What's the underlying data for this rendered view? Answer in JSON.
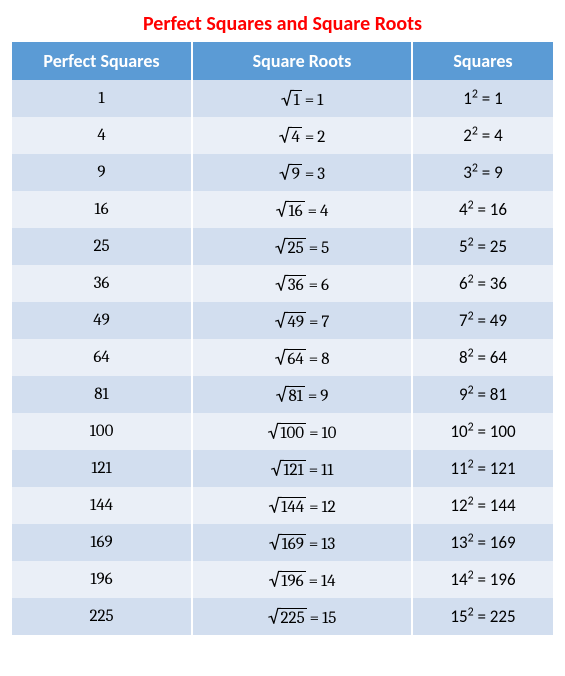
{
  "title": "Perfect Squares and Square Roots",
  "title_color": "#ff0000",
  "title_fontsize": 20,
  "header_bg": "#5b9bd5",
  "header_color": "#ffffff",
  "header_fontsize": 18,
  "row_even_bg": "#d2deef",
  "row_odd_bg": "#eaeff7",
  "cell_fontsize": 17,
  "columns": [
    "Perfect Squares",
    "Square Roots",
    "Squares"
  ],
  "rows": [
    {
      "square": "1",
      "radicand": "1",
      "root": "1",
      "base": "1"
    },
    {
      "square": "4",
      "radicand": "4",
      "root": "2",
      "base": "2"
    },
    {
      "square": "9",
      "radicand": "9",
      "root": "3",
      "base": "3"
    },
    {
      "square": "16",
      "radicand": "16",
      "root": "4",
      "base": "4"
    },
    {
      "square": "25",
      "radicand": "25",
      "root": "5",
      "base": "5"
    },
    {
      "square": "36",
      "radicand": "36",
      "root": "6",
      "base": "6"
    },
    {
      "square": "49",
      "radicand": "49",
      "root": "7",
      "base": "7"
    },
    {
      "square": "64",
      "radicand": "64",
      "root": "8",
      "base": "8"
    },
    {
      "square": "81",
      "radicand": "81",
      "root": "9",
      "base": "9"
    },
    {
      "square": "100",
      "radicand": "100",
      "root": "10",
      "base": "10"
    },
    {
      "square": "121",
      "radicand": "121",
      "root": "11",
      "base": "11"
    },
    {
      "square": "144",
      "radicand": "144",
      "root": "12",
      "base": "12"
    },
    {
      "square": "169",
      "radicand": "169",
      "root": "13",
      "base": "13"
    },
    {
      "square": "196",
      "radicand": "196",
      "root": "14",
      "base": "14"
    },
    {
      "square": "225",
      "radicand": "225",
      "root": "15",
      "base": "15"
    }
  ]
}
